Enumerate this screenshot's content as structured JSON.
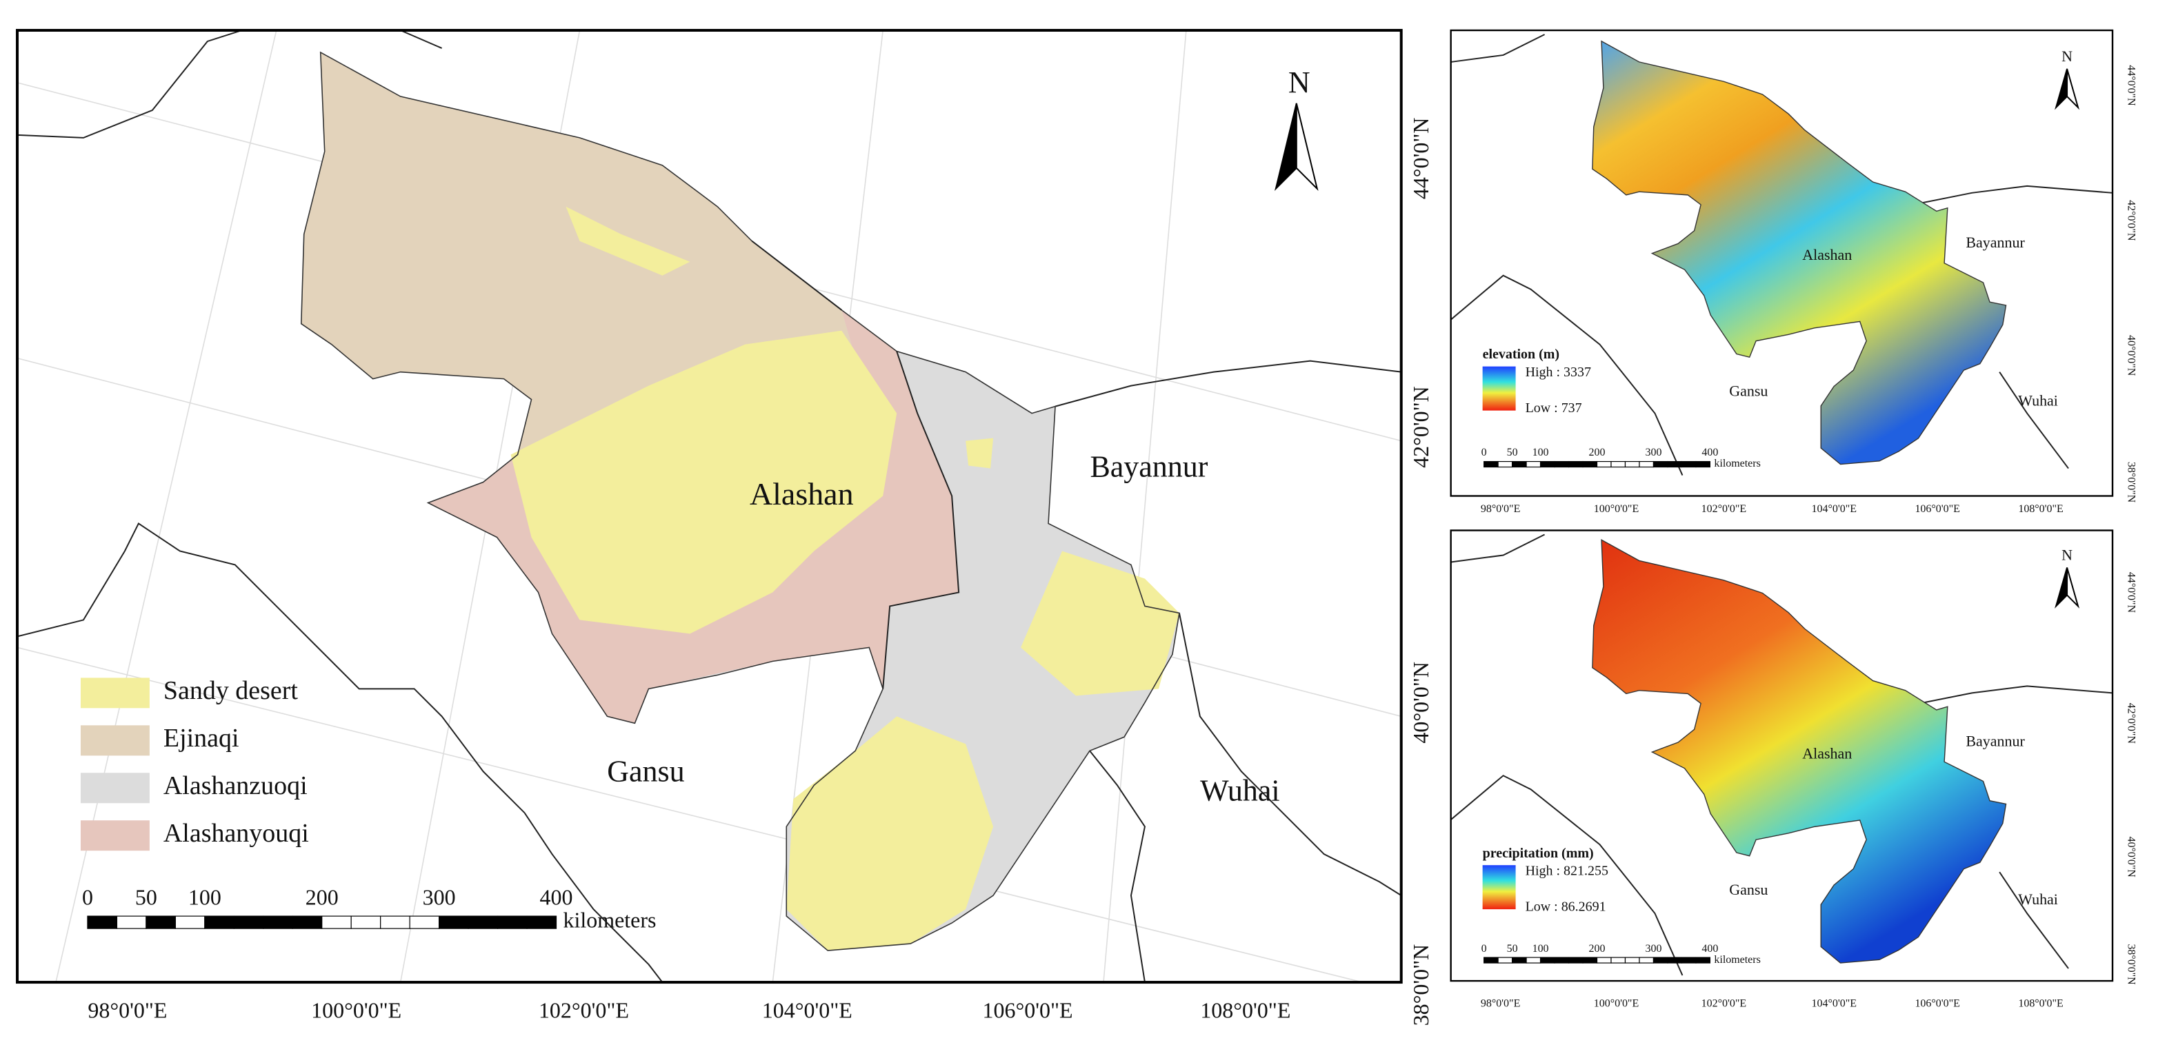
{
  "main_map": {
    "regions": [
      "Alashan",
      "Bayannur",
      "Gansu",
      "Wuhai"
    ],
    "legend": [
      {
        "label": "Sandy desert",
        "color": "#f3ee9c"
      },
      {
        "label": "Ejinaqi",
        "color": "#e3d3bb"
      },
      {
        "label": "Alashanzuoqi",
        "color": "#dcdcdc"
      },
      {
        "label": "Alashanyouqi",
        "color": "#e6c6bd"
      }
    ],
    "scale_bar": {
      "ticks": [
        "0",
        "50",
        "100",
        "200",
        "300",
        "400"
      ],
      "unit": "kilometers"
    },
    "lon_labels": [
      "98°0'0\"E",
      "100°0'0\"E",
      "102°0'0\"E",
      "104°0'0\"E",
      "106°0'0\"E",
      "108°0'0\"E"
    ],
    "lat_labels": [
      "44°0'0\"N",
      "42°0'0\"N",
      "40°0'0\"N",
      "38°0'0\"N"
    ],
    "north": "N"
  },
  "panels": [
    {
      "legend": {
        "title": "elevation (m)",
        "high": "High : 3337",
        "low": "Low : 737"
      },
      "regions": [
        "Alashan",
        "Bayannur",
        "Gansu",
        "Wuhai"
      ],
      "scale_bar": {
        "ticks": [
          "0",
          "50",
          "100",
          "200",
          "300",
          "400"
        ],
        "unit": "kilometers"
      },
      "lon_labels": [
        "98°0'0\"E",
        "100°0'0\"E",
        "102°0'0\"E",
        "104°0'0\"E",
        "106°0'0\"E",
        "108°0'0\"E"
      ],
      "lat_labels": [
        "44°0'0\"N",
        "42°0'0\"N",
        "40°0'0\"N",
        "38°0'0\"N"
      ],
      "north": "N"
    },
    {
      "legend": {
        "title": "precipitation (mm)",
        "high": "High : 821.255",
        "low": "Low : 86.2691"
      },
      "regions": [
        "Alashan",
        "Bayannur",
        "Gansu",
        "Wuhai"
      ],
      "scale_bar": {
        "ticks": [
          "0",
          "50",
          "100",
          "200",
          "300",
          "400"
        ],
        "unit": "kilometers"
      },
      "lon_labels": [
        "98°0'0\"E",
        "100°0'0\"E",
        "102°0'0\"E",
        "104°0'0\"E",
        "106°0'0\"E",
        "108°0'0\"E"
      ],
      "lat_labels": [
        "44°0'0\"N",
        "42°0'0\"N",
        "40°0'0\"N",
        "38°0'0\"N"
      ],
      "north": "N"
    }
  ]
}
